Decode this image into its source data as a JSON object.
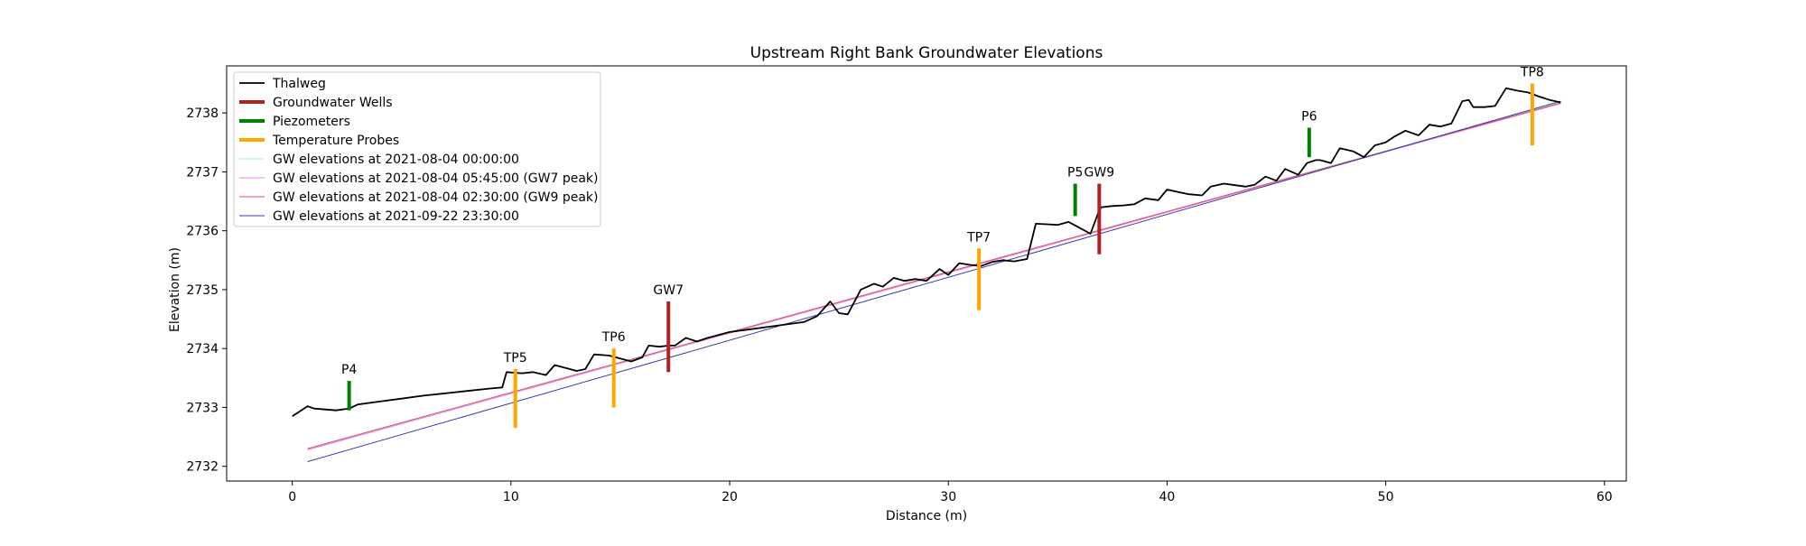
{
  "chart_data": {
    "type": "line",
    "title": "Upstream Right Bank Groundwater Elevations",
    "xlabel": "Distance (m)",
    "ylabel": "Elevation (m)",
    "xlim": [
      -3,
      61
    ],
    "ylim": [
      2731.75,
      2738.8
    ],
    "x_ticks": [
      0,
      10,
      20,
      30,
      40,
      50,
      60
    ],
    "y_ticks": [
      2732,
      2733,
      2734,
      2735,
      2736,
      2737,
      2738
    ],
    "grid": false,
    "legend_position": "upper-left",
    "colors": {
      "thalweg": "#000000",
      "wells": "#b22222",
      "piezometers": "#008000",
      "probes": "#ffa500",
      "gw1": "#7fffd4",
      "gw2": "#ee82ee",
      "gw3": "#e05060",
      "gw4": "#3a3aa8"
    },
    "series": [
      {
        "name": "Thalweg",
        "color": "#000000",
        "x": [
          0,
          0.7,
          1.0,
          2.0,
          2.6,
          3.0,
          4.0,
          5.0,
          6.0,
          7.0,
          8.0,
          9.0,
          9.6,
          9.8,
          10.5,
          11.0,
          11.6,
          12.0,
          13.0,
          13.4,
          13.8,
          14.5,
          15.0,
          15.5,
          16.0,
          16.3,
          16.8,
          17.2,
          17.5,
          18.0,
          18.5,
          19.0,
          20.0,
          21.0,
          22.0,
          23.0,
          23.4,
          24.0,
          24.6,
          25.0,
          25.4,
          26.0,
          26.6,
          27.0,
          27.5,
          28.0,
          28.5,
          29.0,
          29.6,
          30.0,
          30.5,
          31.0,
          31.5,
          32.0,
          32.5,
          33.0,
          33.6,
          34.0,
          34.5,
          35.0,
          35.5,
          36.0,
          36.5,
          36.9,
          37.0,
          37.5,
          38.0,
          38.5,
          39.0,
          39.6,
          40.0,
          40.6,
          41.0,
          41.6,
          42.0,
          42.6,
          43.0,
          43.6,
          44.0,
          44.5,
          45.0,
          45.4,
          45.7,
          46.0,
          46.4,
          46.8,
          47.0,
          47.5,
          47.9,
          48.5,
          49.0,
          49.5,
          50.0,
          50.4,
          50.9,
          51.5,
          52.0,
          52.5,
          53.0,
          53.5,
          53.8,
          54.0,
          54.5,
          55.0,
          55.5,
          56.0,
          56.5,
          57.0,
          57.5,
          58.0
        ],
        "y": [
          2732.85,
          2733.02,
          2732.98,
          2732.95,
          2732.98,
          2733.05,
          2733.1,
          2733.15,
          2733.2,
          2733.24,
          2733.28,
          2733.32,
          2733.34,
          2733.6,
          2733.58,
          2733.6,
          2733.55,
          2733.72,
          2733.62,
          2733.65,
          2733.9,
          2733.88,
          2733.83,
          2733.78,
          2733.85,
          2734.05,
          2734.03,
          2734.05,
          2734.05,
          2734.18,
          2734.12,
          2734.18,
          2734.28,
          2734.33,
          2734.38,
          2734.43,
          2734.45,
          2734.55,
          2734.8,
          2734.6,
          2734.58,
          2735.0,
          2735.1,
          2735.05,
          2735.2,
          2735.15,
          2735.18,
          2735.15,
          2735.35,
          2735.25,
          2735.45,
          2735.42,
          2735.4,
          2735.47,
          2735.5,
          2735.48,
          2735.52,
          2736.12,
          2736.11,
          2736.1,
          2736.15,
          2736.05,
          2735.95,
          2736.35,
          2736.4,
          2736.42,
          2736.43,
          2736.45,
          2736.55,
          2736.52,
          2736.7,
          2736.65,
          2736.62,
          2736.6,
          2736.75,
          2736.8,
          2736.78,
          2736.75,
          2736.78,
          2736.92,
          2736.85,
          2737.05,
          2737.0,
          2736.95,
          2737.15,
          2737.2,
          2737.2,
          2737.15,
          2737.4,
          2737.35,
          2737.25,
          2737.45,
          2737.5,
          2737.6,
          2737.7,
          2737.62,
          2737.8,
          2737.77,
          2737.82,
          2738.2,
          2738.22,
          2738.1,
          2738.1,
          2738.12,
          2738.42,
          2738.38,
          2738.35,
          2738.28,
          2738.22,
          2738.18
        ]
      },
      {
        "name": "GW elevations at 2021-08-04 00:00:00",
        "color": "#7fffd4",
        "x": [
          0.7,
          58.0
        ],
        "y": [
          2732.28,
          2738.18
        ]
      },
      {
        "name": "GW elevations at 2021-08-04 05:45:00 (GW7 peak)",
        "color": "#ee82ee",
        "x": [
          0.7,
          58.0
        ],
        "y": [
          2732.28,
          2738.16
        ]
      },
      {
        "name": "GW elevations at 2021-08-04 02:30:00 (GW9 peak)",
        "color": "#e05060",
        "x": [
          0.7,
          58.0
        ],
        "y": [
          2732.3,
          2738.17
        ]
      },
      {
        "name": "GW elevations at 2021-09-22 23:30:00",
        "color": "#3a3aa8",
        "x": [
          0.7,
          58.0
        ],
        "y": [
          2732.08,
          2738.2
        ]
      }
    ],
    "instruments": [
      {
        "label": "P4",
        "kind": "piezometer",
        "x": 2.6,
        "y_top": 2733.45,
        "y_bottom": 2732.95
      },
      {
        "label": "TP5",
        "kind": "probe",
        "x": 10.2,
        "y_top": 2733.65,
        "y_bottom": 2732.65
      },
      {
        "label": "TP6",
        "kind": "probe",
        "x": 14.7,
        "y_top": 2734.0,
        "y_bottom": 2733.0
      },
      {
        "label": "GW7",
        "kind": "well",
        "x": 17.2,
        "y_top": 2734.8,
        "y_bottom": 2733.6
      },
      {
        "label": "TP7",
        "kind": "probe",
        "x": 31.4,
        "y_top": 2735.7,
        "y_bottom": 2734.65
      },
      {
        "label": "P5",
        "kind": "piezometer",
        "x": 35.8,
        "y_top": 2736.8,
        "y_bottom": 2736.25
      },
      {
        "label": "GW9",
        "kind": "well",
        "x": 36.9,
        "y_top": 2736.8,
        "y_bottom": 2735.6
      },
      {
        "label": "P6",
        "kind": "piezometer",
        "x": 46.5,
        "y_top": 2737.75,
        "y_bottom": 2737.25
      },
      {
        "label": "TP8",
        "kind": "probe",
        "x": 56.7,
        "y_top": 2738.5,
        "y_bottom": 2737.45
      }
    ],
    "legend": [
      {
        "label": "Thalweg",
        "color": "#000000",
        "width": 1.8
      },
      {
        "label": "Groundwater Wells",
        "color": "#b22222",
        "width": 4
      },
      {
        "label": "Piezometers",
        "color": "#008000",
        "width": 4
      },
      {
        "label": "Temperature Probes",
        "color": "#ffa500",
        "width": 4
      },
      {
        "label": "GW elevations at 2021-08-04 00:00:00",
        "color": "#7fffd4",
        "width": 1
      },
      {
        "label": "GW elevations at 2021-08-04 05:45:00 (GW7 peak)",
        "color": "#ee82ee",
        "width": 1
      },
      {
        "label": "GW elevations at 2021-08-04 02:30:00 (GW9 peak)",
        "color": "#e05060",
        "width": 1
      },
      {
        "label": "GW elevations at 2021-09-22 23:30:00",
        "color": "#3a3aa8",
        "width": 1
      }
    ]
  }
}
